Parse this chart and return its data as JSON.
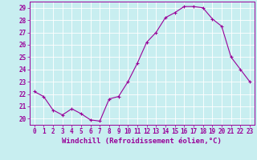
{
  "x": [
    0,
    1,
    2,
    3,
    4,
    5,
    6,
    7,
    8,
    9,
    10,
    11,
    12,
    13,
    14,
    15,
    16,
    17,
    18,
    19,
    20,
    21,
    22,
    23
  ],
  "y": [
    22.2,
    21.8,
    20.7,
    20.3,
    20.8,
    20.4,
    19.9,
    19.8,
    21.6,
    21.8,
    23.0,
    24.5,
    26.2,
    27.0,
    28.2,
    28.6,
    29.1,
    29.1,
    29.0,
    28.1,
    27.5,
    25.0,
    24.0,
    23.0
  ],
  "line_color": "#990099",
  "marker": "+",
  "marker_size": 3,
  "bg_color": "#c8eef0",
  "grid_color": "#ffffff",
  "xlabel": "Windchill (Refroidissement éolien,°C)",
  "ylabel": "",
  "yticks": [
    20,
    21,
    22,
    23,
    24,
    25,
    26,
    27,
    28,
    29
  ],
  "xticks": [
    0,
    1,
    2,
    3,
    4,
    5,
    6,
    7,
    8,
    9,
    10,
    11,
    12,
    13,
    14,
    15,
    16,
    17,
    18,
    19,
    20,
    21,
    22,
    23
  ],
  "ylim": [
    19.5,
    29.5
  ],
  "xlim": [
    -0.5,
    23.5
  ],
  "tick_color": "#990099",
  "tick_fontsize": 5.5,
  "xlabel_fontsize": 6.5,
  "xlabel_color": "#990099",
  "label_fontweight": "bold",
  "linewidth": 0.8
}
